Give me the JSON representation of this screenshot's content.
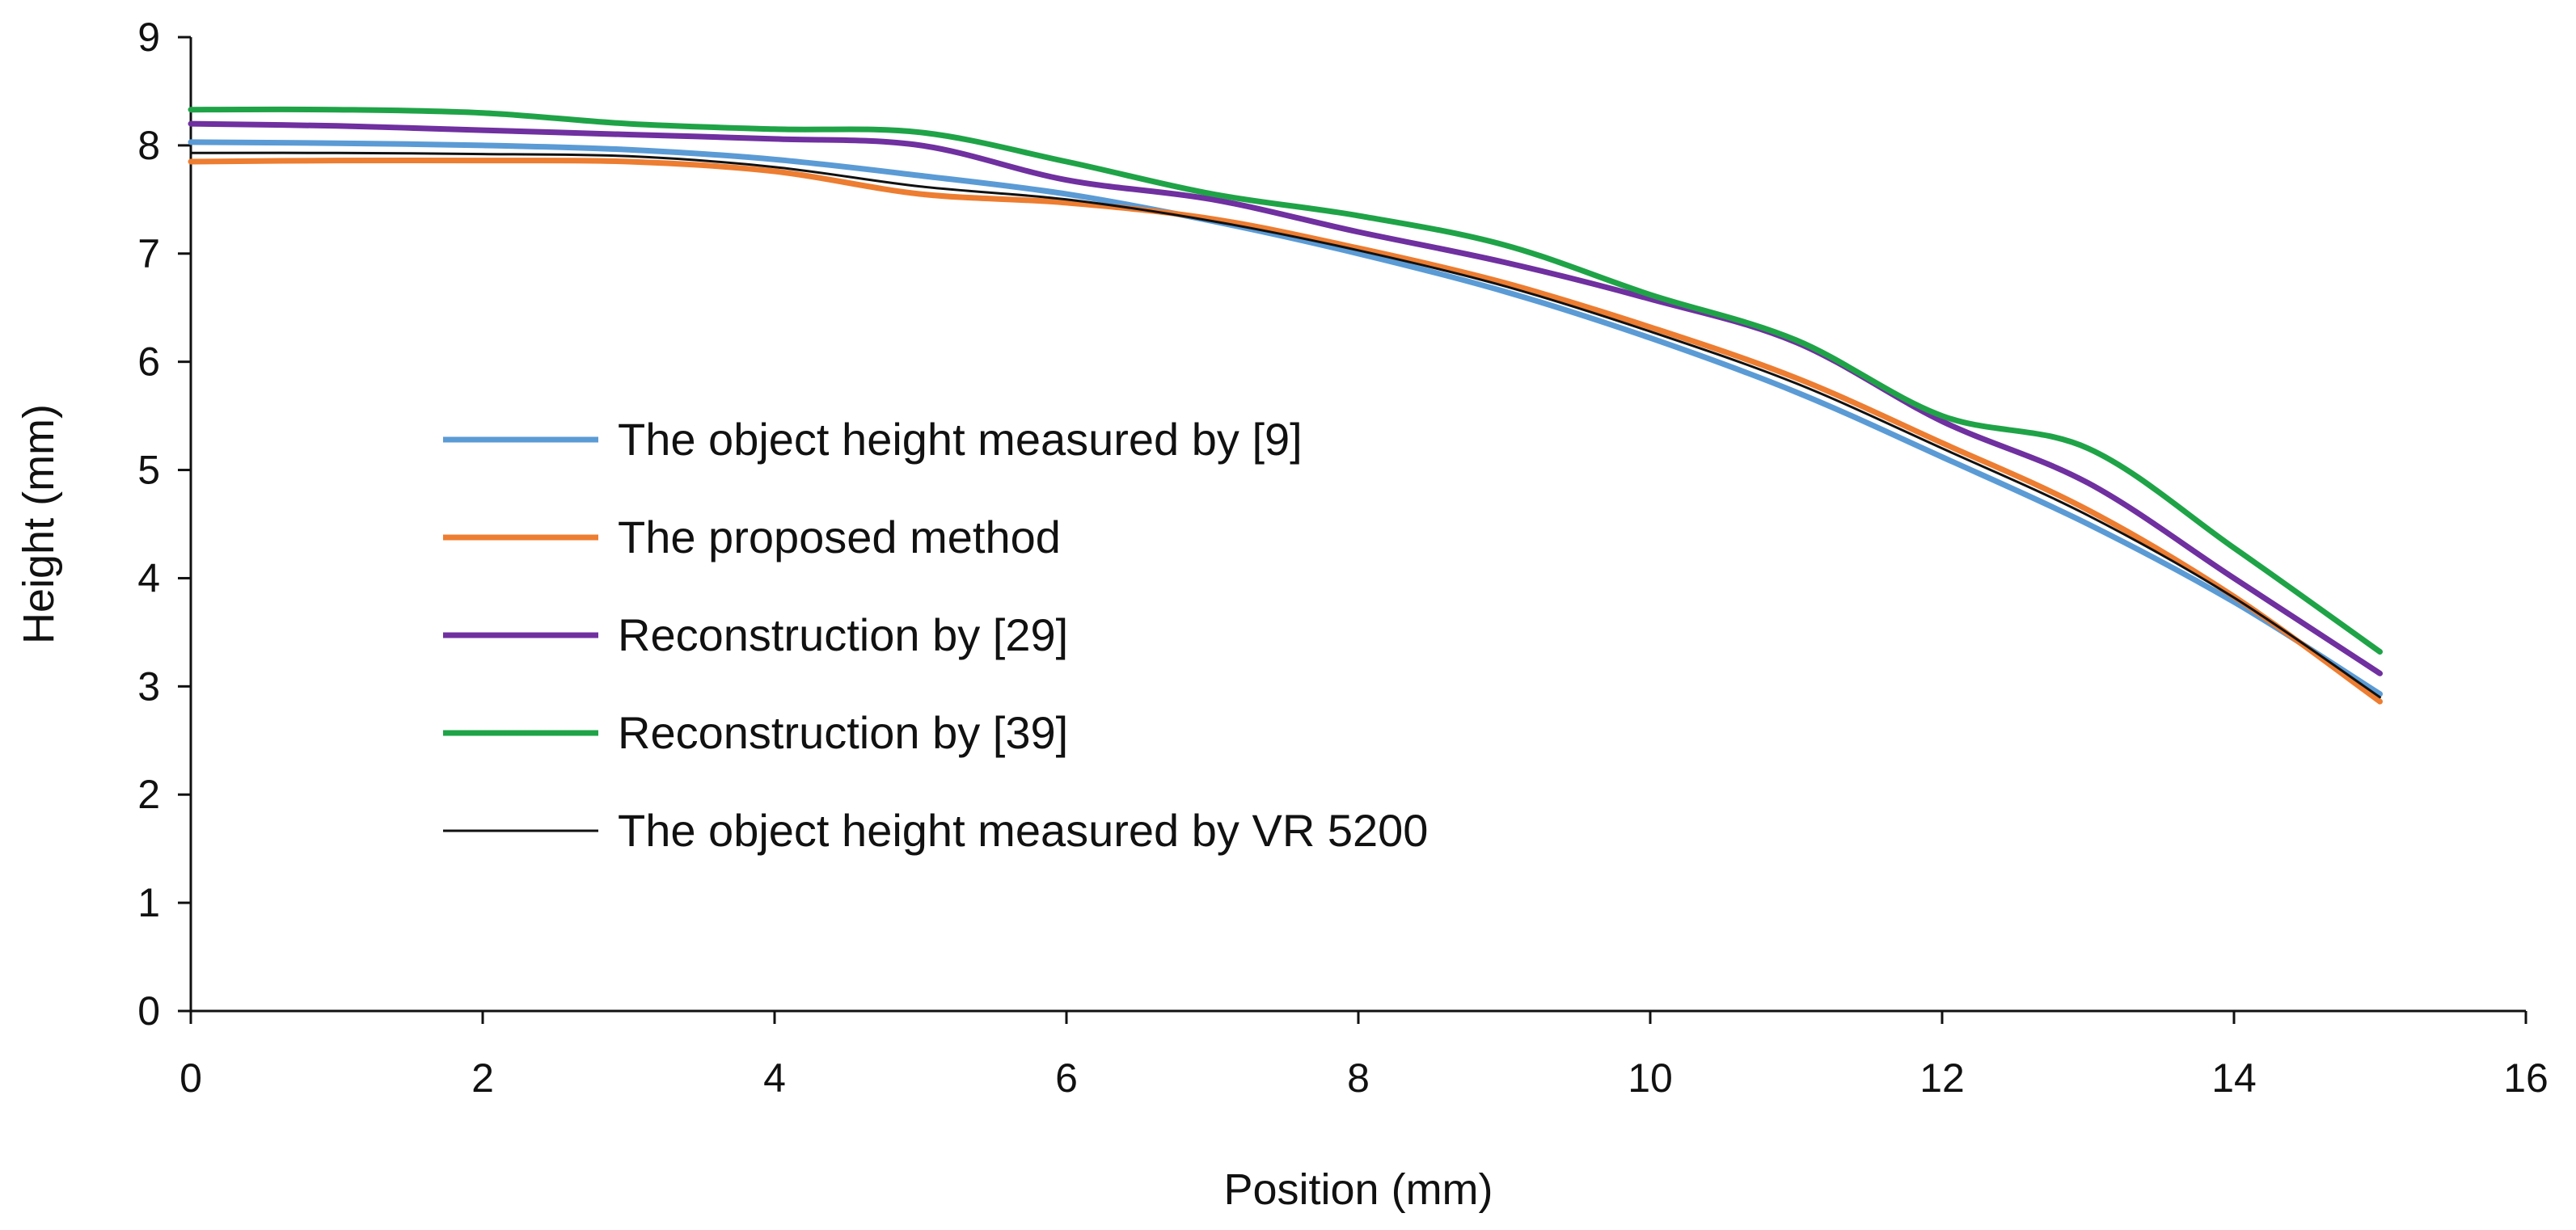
{
  "chart_data": {
    "type": "line",
    "title": "",
    "xlabel": "Position (mm)",
    "ylabel": "Height (mm)",
    "xlim": [
      0,
      16
    ],
    "ylim": [
      0,
      9
    ],
    "xticks": [
      "0",
      "2",
      "4",
      "6",
      "8",
      "10",
      "12",
      "14",
      "16"
    ],
    "yticks": [
      "0",
      "1",
      "2",
      "3",
      "4",
      "5",
      "6",
      "7",
      "8",
      "9"
    ],
    "grid": false,
    "legend_position": "inside-left",
    "x": [
      0,
      1,
      2,
      3,
      4,
      5,
      6,
      7,
      8,
      9,
      10,
      11,
      12,
      13,
      14,
      15
    ],
    "series": [
      {
        "name": "The object height measured by [9]",
        "color": "#5B9BD5",
        "values": [
          8.03,
          8.02,
          8.0,
          7.96,
          7.87,
          7.72,
          7.55,
          7.3,
          7.0,
          6.65,
          6.22,
          5.72,
          5.12,
          4.5,
          3.78,
          2.93
        ]
      },
      {
        "name": "The proposed method",
        "color": "#ED7D31",
        "values": [
          7.85,
          7.86,
          7.86,
          7.85,
          7.76,
          7.55,
          7.47,
          7.32,
          7.05,
          6.73,
          6.32,
          5.85,
          5.25,
          4.63,
          3.83,
          2.86
        ]
      },
      {
        "name": "Reconstruction by [29]",
        "color": "#7030A0",
        "values": [
          8.2,
          8.18,
          8.14,
          8.1,
          8.06,
          8.0,
          7.68,
          7.5,
          7.2,
          6.92,
          6.58,
          6.18,
          5.45,
          4.88,
          4.0,
          3.12
        ]
      },
      {
        "name": "Reconstruction by [39]",
        "color": "#1FA347",
        "values": [
          8.33,
          8.33,
          8.3,
          8.2,
          8.15,
          8.12,
          7.85,
          7.55,
          7.35,
          7.08,
          6.62,
          6.2,
          5.5,
          5.2,
          4.28,
          3.32
        ]
      },
      {
        "name": "The object height measured by VR 5200",
        "color": "#111111",
        "values": [
          7.93,
          7.93,
          7.92,
          7.9,
          7.8,
          7.62,
          7.5,
          7.3,
          7.03,
          6.7,
          6.28,
          5.8,
          5.2,
          4.58,
          3.82,
          2.9
        ]
      }
    ]
  }
}
